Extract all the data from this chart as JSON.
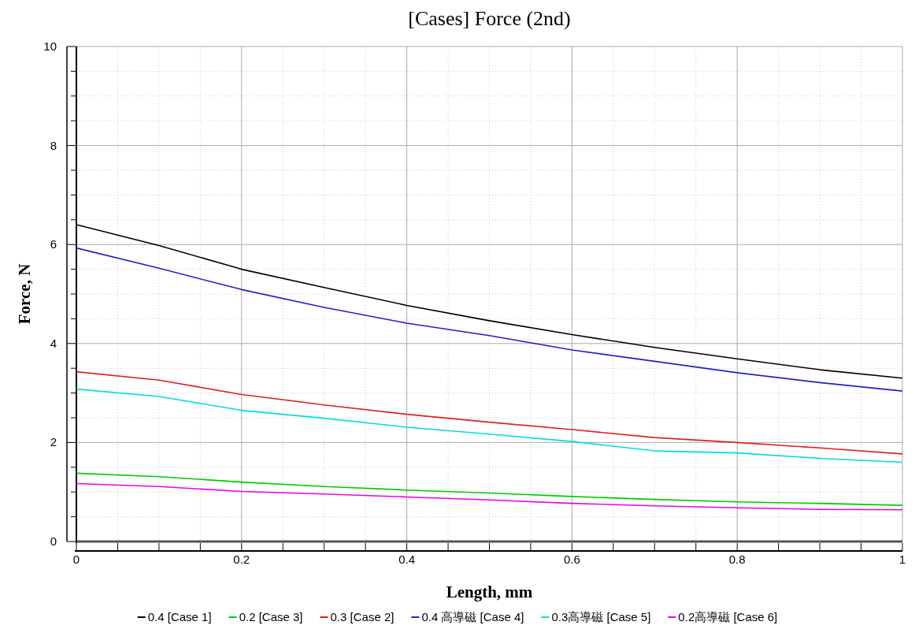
{
  "chart_data": {
    "type": "line",
    "title": "[Cases] Force (2nd)",
    "xlabel": "Length, mm",
    "ylabel": "Force, N",
    "x": [
      0,
      0.1,
      0.2,
      0.3,
      0.4,
      0.5,
      0.6,
      0.7,
      0.8,
      0.9,
      1.0
    ],
    "xlim": [
      0,
      1
    ],
    "ylim": [
      0,
      10
    ],
    "xticks": [
      0,
      0.2,
      0.4,
      0.6,
      0.8,
      1
    ],
    "yticks": [
      0,
      2,
      4,
      6,
      8,
      10
    ],
    "grid": true,
    "legend": "bottom",
    "line_style": "solid",
    "series": [
      {
        "name": "0.4 [Case 1]",
        "color": "#000000",
        "values": [
          6.4,
          5.98,
          5.5,
          5.13,
          4.77,
          4.46,
          4.18,
          3.92,
          3.69,
          3.47,
          3.3
        ]
      },
      {
        "name": "0.2 [Case 3]",
        "color": "#00cc00",
        "values": [
          1.38,
          1.31,
          1.2,
          1.11,
          1.04,
          0.98,
          0.91,
          0.85,
          0.8,
          0.77,
          0.73
        ]
      },
      {
        "name": "0.3 [Case 2]",
        "color": "#e02020",
        "values": [
          3.43,
          3.26,
          2.97,
          2.76,
          2.57,
          2.41,
          2.26,
          2.1,
          2.0,
          1.89,
          1.77
        ]
      },
      {
        "name": "0.4 高導磁 [Case 4]",
        "color": "#2020cc",
        "values": [
          5.93,
          5.52,
          5.09,
          4.73,
          4.41,
          4.16,
          3.87,
          3.64,
          3.41,
          3.21,
          3.04
        ]
      },
      {
        "name": "0.3高導磁 [Case 5]",
        "color": "#00dddd",
        "values": [
          3.08,
          2.93,
          2.65,
          2.49,
          2.31,
          2.17,
          2.02,
          1.83,
          1.79,
          1.68,
          1.6
        ]
      },
      {
        "name": "0.2高導磁 [Case 6]",
        "color": "#ee00ee",
        "values": [
          1.17,
          1.11,
          1.01,
          0.96,
          0.9,
          0.84,
          0.77,
          0.72,
          0.68,
          0.65,
          0.64
        ]
      }
    ]
  }
}
